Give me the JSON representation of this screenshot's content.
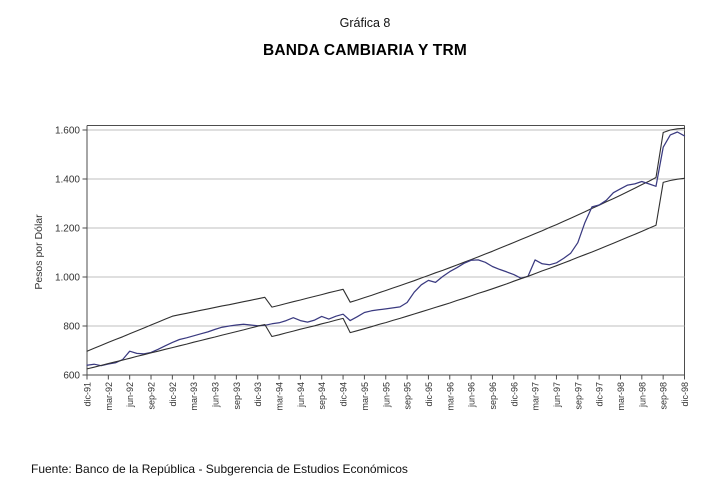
{
  "header": {
    "title_line1": "Gráfica 8",
    "title_line2": "BANDA CAMBIARIA Y TRM"
  },
  "footer": {
    "source": "Fuente: Banco de la República - Subgerencia de Estudios Económicos"
  },
  "colors": {
    "band_line": "#303030",
    "trm_line": "#3a3a80",
    "gridline": "#bfbfbf",
    "axis": "#4d4d4d",
    "tick_text": "#333333"
  },
  "chart_data": {
    "type": "line",
    "title": "BANDA CAMBIARIA Y TRM",
    "xlabel": "",
    "ylabel": "Pesos por Dólar",
    "legend": "none",
    "grid": "horizontal",
    "x_axis": {
      "months_count": 85,
      "first_month": "dic-91",
      "last_month": "dic-98",
      "tick_every_months": 3,
      "tick_labels": [
        "dic-91",
        "mar-92",
        "jun-92",
        "sep-92",
        "dic-92",
        "mar-93",
        "jun-93",
        "sep-93",
        "dic-93",
        "mar-94",
        "jun-94",
        "sep-94",
        "dic-94",
        "mar-95",
        "jun-95",
        "sep-95",
        "dic-95",
        "mar-96",
        "jun-96",
        "sep-96",
        "dic-96",
        "mar-97",
        "jun-97",
        "sep-97",
        "dic-97",
        "mar-98",
        "jun-98",
        "sep-98",
        "dic-98"
      ]
    },
    "y_axis": {
      "title": "Pesos por Dólar",
      "min": 600,
      "max": 1620,
      "tick_values": [
        600,
        800,
        1000,
        1200,
        1400,
        1600
      ],
      "tick_labels": [
        "600",
        "800",
        "1.000",
        "1.200",
        "1.400",
        "1.600"
      ],
      "grid_values": [
        800,
        1000,
        1200,
        1400,
        1600
      ]
    },
    "series": [
      {
        "key": "banda_superior",
        "name": "Banda superior",
        "color": "#303030",
        "width": 1.1,
        "values": [
          697,
          709,
          721,
          733,
          745,
          756,
          768,
          780,
          792,
          804,
          816,
          828,
          840,
          846,
          852,
          858,
          864,
          870,
          876,
          882,
          887,
          893,
          899,
          905,
          911,
          917,
          877,
          884,
          892,
          899,
          906,
          914,
          921,
          928,
          936,
          943,
          950,
          897,
          906,
          916,
          925,
          935,
          945,
          955,
          965,
          975,
          985,
          996,
          1006,
          1017,
          1027,
          1038,
          1049,
          1060,
          1071,
          1082,
          1094,
          1105,
          1117,
          1129,
          1141,
          1153,
          1165,
          1177,
          1189,
          1202,
          1214,
          1227,
          1240,
          1253,
          1266,
          1280,
          1293,
          1307,
          1320,
          1334,
          1348,
          1362,
          1377,
          1391,
          1406,
          1590,
          1600,
          1605,
          1607
        ]
      },
      {
        "key": "trm",
        "name": "TRM",
        "color": "#3a3a80",
        "width": 1.25,
        "values": [
          640,
          644,
          638,
          645,
          650,
          663,
          697,
          688,
          686,
          692,
          705,
          719,
          733,
          745,
          752,
          760,
          768,
          776,
          786,
          795,
          800,
          804,
          807,
          804,
          801,
          803,
          809,
          813,
          822,
          834,
          822,
          816,
          824,
          839,
          828,
          840,
          848,
          822,
          838,
          855,
          862,
          866,
          870,
          874,
          878,
          896,
          938,
          968,
          986,
          978,
          1002,
          1022,
          1038,
          1056,
          1068,
          1070,
          1060,
          1043,
          1031,
          1021,
          1010,
          995,
          1003,
          1070,
          1054,
          1050,
          1058,
          1076,
          1097,
          1140,
          1222,
          1286,
          1294,
          1313,
          1344,
          1360,
          1375,
          1380,
          1390,
          1380,
          1370,
          1530,
          1580,
          1592,
          1576
        ]
      },
      {
        "key": "banda_inferior",
        "name": "Banda inferior",
        "color": "#303030",
        "width": 1.1,
        "values": [
          625,
          632,
          639,
          647,
          654,
          661,
          668,
          676,
          683,
          690,
          697,
          705,
          712,
          719,
          726,
          734,
          741,
          748,
          755,
          763,
          770,
          777,
          784,
          792,
          799,
          806,
          757,
          764,
          772,
          779,
          787,
          794,
          801,
          809,
          816,
          824,
          831,
          773,
          781,
          789,
          797,
          806,
          814,
          823,
          831,
          840,
          849,
          858,
          867,
          876,
          885,
          894,
          904,
          913,
          923,
          933,
          942,
          952,
          962,
          972,
          983,
          993,
          1003,
          1014,
          1025,
          1035,
          1046,
          1057,
          1068,
          1080,
          1091,
          1102,
          1114,
          1126,
          1138,
          1150,
          1162,
          1174,
          1186,
          1199,
          1211,
          1386,
          1394,
          1399,
          1403
        ]
      }
    ]
  }
}
